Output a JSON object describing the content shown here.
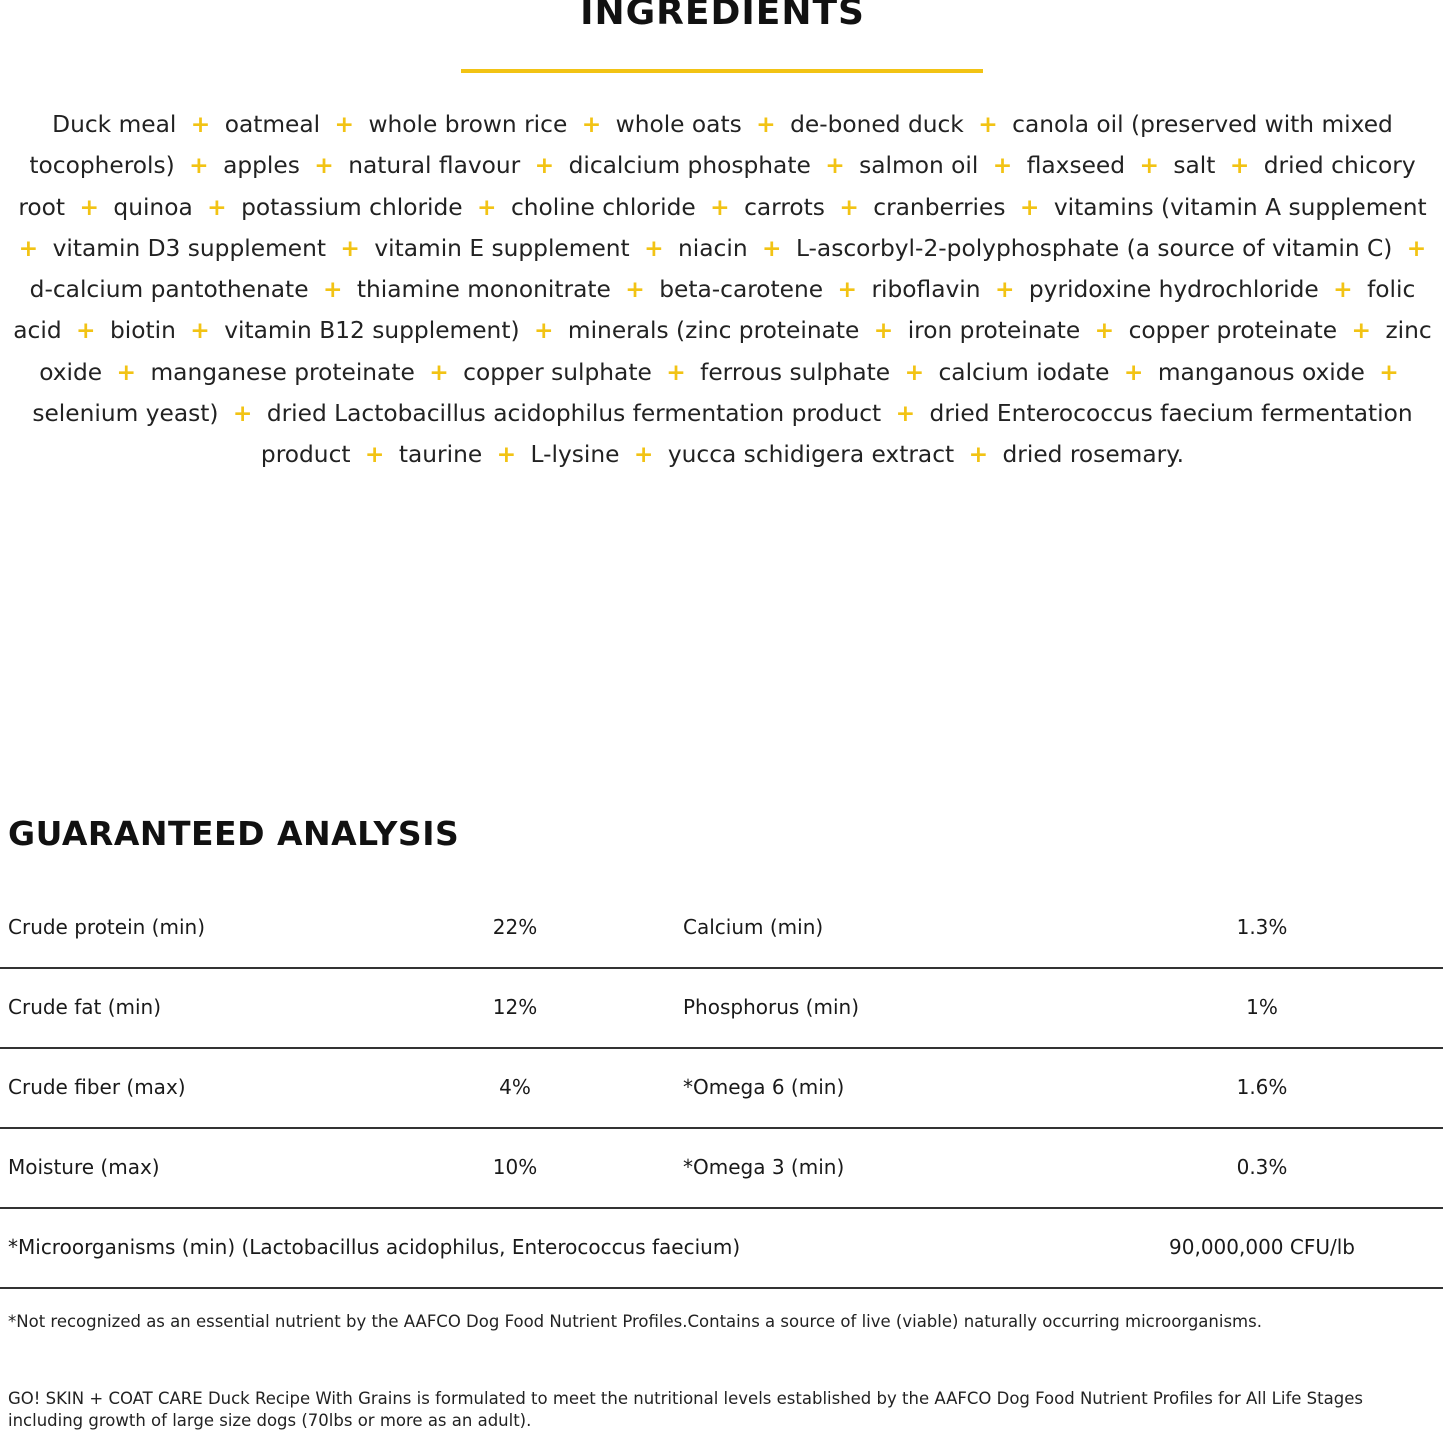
{
  "ingredients": {
    "title": "INGREDIENTS",
    "accent_color": "#f2c314",
    "separator": "+",
    "items": [
      "Duck meal",
      "oatmeal",
      "whole brown rice",
      "whole oats",
      "de-boned duck",
      "canola oil (preserved with mixed tocopherols)",
      "apples",
      "natural flavour",
      "dicalcium phosphate",
      "salmon oil",
      "flaxseed",
      "salt",
      "dried chicory root",
      "quinoa",
      "potassium chloride",
      "choline chloride",
      "carrots",
      "cranberries",
      "vitamins (vitamin A supplement",
      "vitamin D3 supplement",
      "vitamin E supplement",
      "niacin",
      "L-ascorbyl-2-polyphosphate (a source of vitamin C)",
      "d-calcium pantothenate",
      "thiamine mononitrate",
      "beta-carotene",
      "riboflavin",
      "pyridoxine hydrochloride",
      "folic acid",
      "biotin",
      "vitamin B12 supplement)",
      "minerals (zinc proteinate",
      "iron proteinate",
      "copper proteinate",
      "zinc oxide",
      "manganese proteinate",
      "copper sulphate",
      "ferrous sulphate",
      "calcium iodate",
      "manganous oxide",
      "selenium yeast)",
      "dried Lactobacillus acidophilus fermentation product",
      "dried Enterococcus faecium fermentation product",
      "taurine",
      "L-lysine",
      "yucca schidigera extract",
      "dried rosemary."
    ]
  },
  "analysis": {
    "title": "GUARANTEED ANALYSIS",
    "rows": [
      {
        "label1": "Crude protein (min)",
        "value1": "22%",
        "label2": "Calcium (min)",
        "value2": "1.3%"
      },
      {
        "label1": "Crude fat (min)",
        "value1": "12%",
        "label2": "Phosphorus (min)",
        "value2": "1%"
      },
      {
        "label1": "Crude fiber (max)",
        "value1": "4%",
        "label2": "*Omega 6 (min)",
        "value2": "1.6%"
      },
      {
        "label1": "Moisture (max)",
        "value1": "10%",
        "label2": "*Omega 3 (min)",
        "value2": "0.3%"
      }
    ],
    "micro": {
      "label": "*Microorganisms (min) (Lactobacillus acidophilus, Enterococcus faecium)",
      "value": "90,000,000 CFU/lb"
    },
    "footnote": "*Not recognized as an essential nutrient by the AAFCO Dog Food Nutrient Profiles.Contains a source of live (viable) naturally occurring microorganisms.",
    "statement": "GO! SKIN + COAT CARE Duck Recipe With Grains is formulated to meet the nutritional levels established by the AAFCO Dog Food Nutrient Profiles for All Life Stages including growth of large size dogs (70lbs or more as an adult)."
  }
}
